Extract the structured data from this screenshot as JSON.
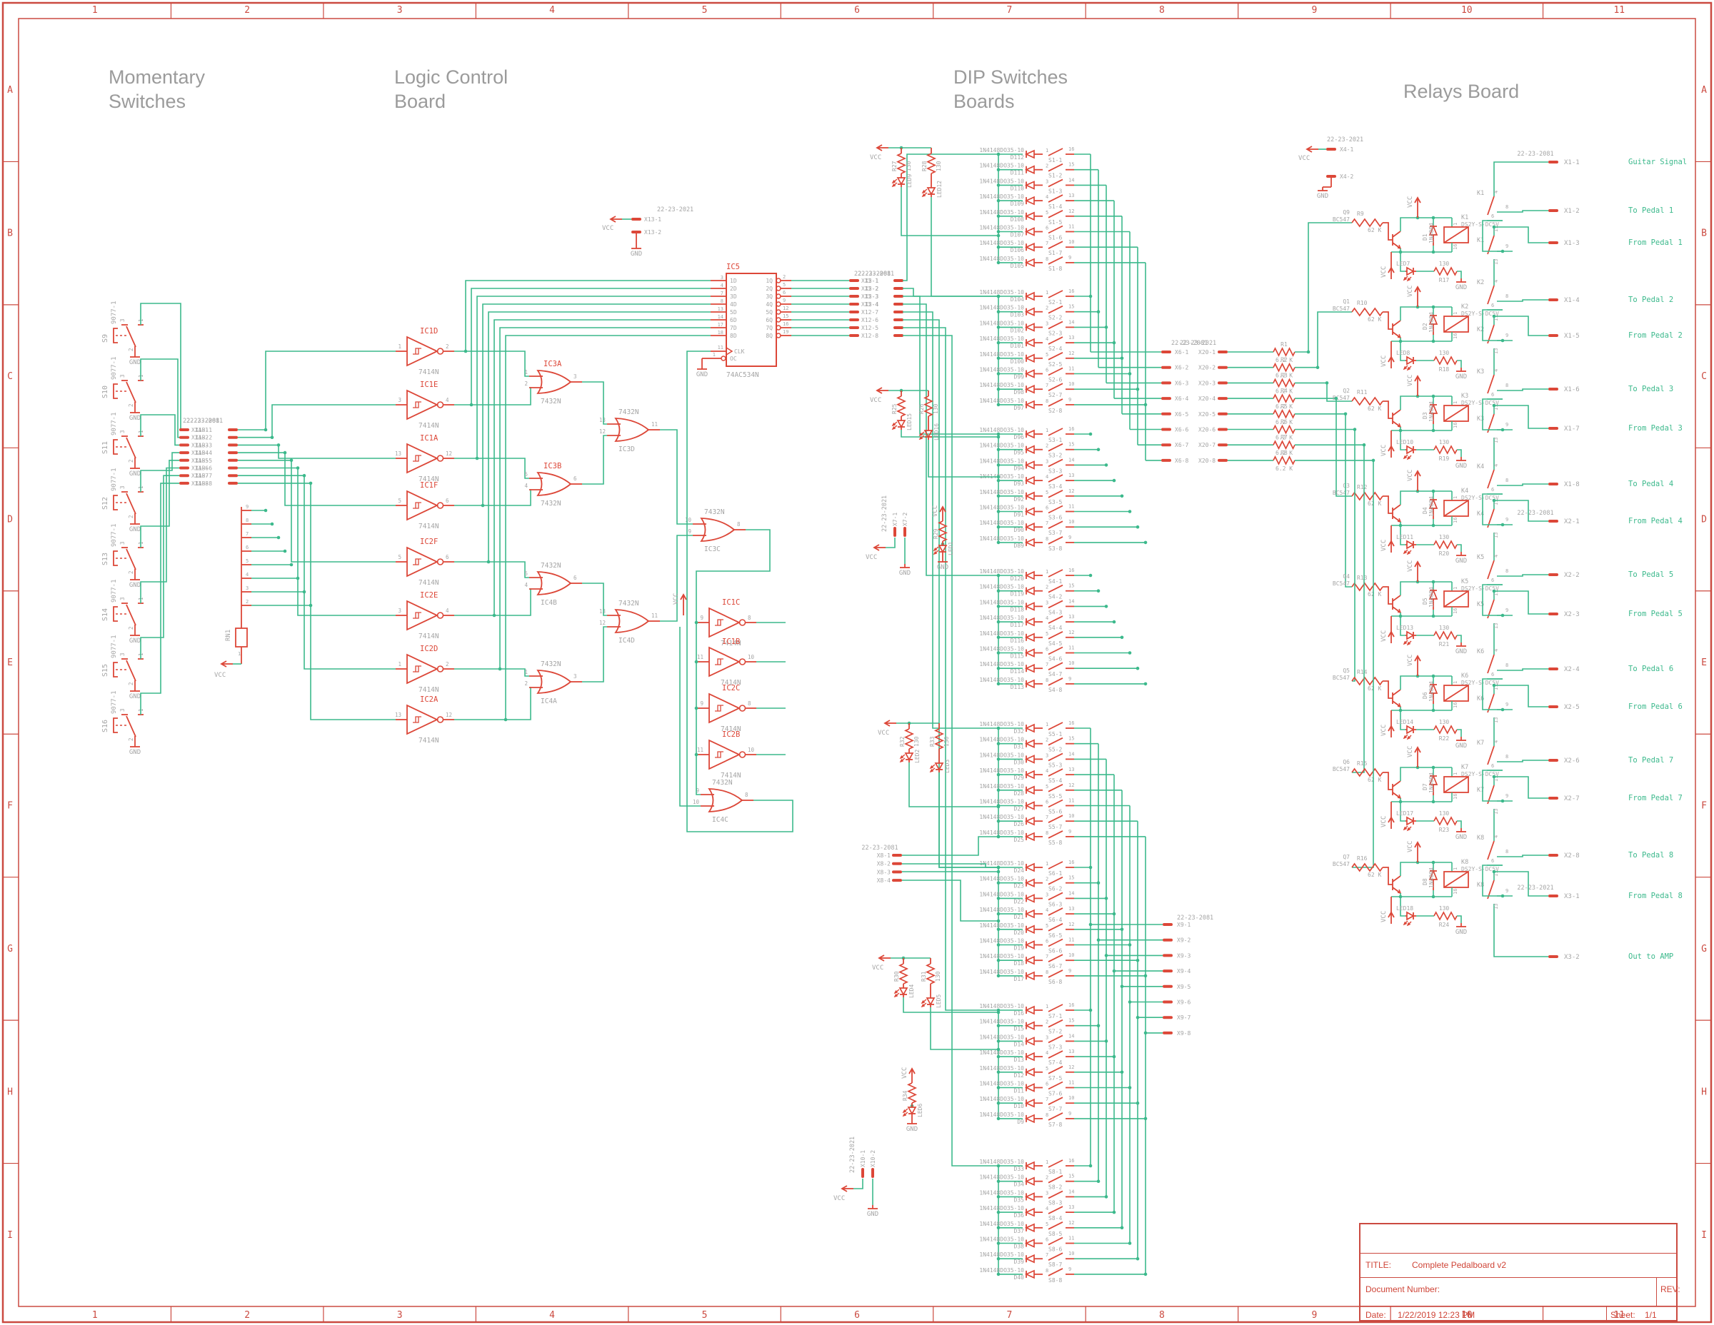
{
  "palette": {
    "red": "#dc4738",
    "green": "#3cb98c",
    "gray": "#a5a5a5",
    "frame": "#cb4a40",
    "title_red": "#cf4437"
  },
  "frame": {
    "cols": [
      "1",
      "2",
      "3",
      "4",
      "5",
      "6",
      "7",
      "8",
      "9",
      "10",
      "11"
    ],
    "rows": [
      "A",
      "B",
      "C",
      "D",
      "E",
      "F",
      "G",
      "H",
      "I"
    ]
  },
  "sections": {
    "momentary": "Momentary\nSwitches",
    "logic": "Logic Control\nBoard",
    "dip": "DIP Switches\nBoards",
    "relays": "Relays Board"
  },
  "title_block": {
    "title_label": "TITLE:",
    "title": "Complete Pedalboard v2",
    "doc_label": "Document Number:",
    "rev_label": "REV:",
    "date_label": "Date:",
    "date": "1/22/2019 12:23 PM",
    "sheet_label": "Sheet:",
    "sheet": "1/1"
  },
  "power": {
    "vcc": "VCC",
    "gnd": "GND"
  },
  "momentary": {
    "part": "9077-1",
    "pins": [
      "3",
      "1",
      "2"
    ],
    "switches": [
      "S9",
      "S10",
      "S11",
      "S12",
      "S13",
      "S14",
      "S15",
      "S16"
    ]
  },
  "conn_x1ab": {
    "header": "22-23-2081",
    "a": "X1A",
    "b": "X1B",
    "count": 8
  },
  "rn1": {
    "name": "RN1",
    "common_pin": "1",
    "pins": [
      "9",
      "8",
      "7",
      "6",
      "5",
      "4",
      "3",
      "2"
    ]
  },
  "inverters": {
    "part": "7414N",
    "left": [
      {
        "name": "IC1D",
        "in": "1",
        "out": "2"
      },
      {
        "name": "IC1E",
        "in": "3",
        "out": "4"
      },
      {
        "name": "IC1A",
        "in": "13",
        "out": "12"
      },
      {
        "name": "IC1F",
        "in": "5",
        "out": "6"
      },
      {
        "name": "IC2F",
        "in": "5",
        "out": "6"
      },
      {
        "name": "IC2E",
        "in": "3",
        "out": "4"
      },
      {
        "name": "IC2D",
        "in": "1",
        "out": "2"
      },
      {
        "name": "IC2A",
        "in": "13",
        "out": "12"
      }
    ],
    "right": [
      {
        "name": "IC1C",
        "in": "9",
        "out": "8"
      },
      {
        "name": "IC1B",
        "in": "11",
        "out": "10"
      },
      {
        "name": "IC2C",
        "in": "9",
        "out": "8"
      },
      {
        "name": "IC2B",
        "in": "11",
        "out": "10"
      }
    ]
  },
  "or_gates": {
    "part": "7432N",
    "tier1": [
      {
        "name": "IC3A",
        "a": "1",
        "b": "2",
        "y": "3"
      },
      {
        "name": "IC3B",
        "a": "5",
        "b": "4",
        "y": "6"
      },
      {
        "name": "IC4B",
        "a": "5",
        "b": "4",
        "y": "6"
      },
      {
        "name": "IC4A",
        "a": "1",
        "b": "2",
        "y": "3"
      }
    ],
    "tier2": [
      {
        "name": "IC3D",
        "a": "13",
        "b": "12",
        "y": "11"
      },
      {
        "name": "IC4D",
        "a": "13",
        "b": "12",
        "y": "11"
      }
    ],
    "tier3": {
      "name": "IC3C",
      "a": "10",
      "b": "9",
      "y": "8"
    },
    "tier4": {
      "name": "IC4C",
      "a": "9",
      "b": "10",
      "y": "8"
    }
  },
  "ic5": {
    "name": "IC5",
    "part": "74AC534N",
    "left_pins": [
      "3",
      "4",
      "7",
      "8",
      "13",
      "14",
      "17",
      "18"
    ],
    "left_labels": [
      "1D",
      "2D",
      "3D",
      "4D",
      "5D",
      "6D",
      "7D",
      "8D"
    ],
    "right_pins": [
      "2",
      "5",
      "6",
      "9",
      "12",
      "15",
      "16",
      "19"
    ],
    "right_labels": [
      "1Q",
      "2Q",
      "3Q",
      "4Q",
      "5Q",
      "6Q",
      "7Q",
      "8Q"
    ],
    "clk_pin": "11",
    "clk_label": "CLK",
    "oc_pin": "1",
    "oc_label": "OC"
  },
  "conn_x12": {
    "header": "22-23-2081",
    "rows": [
      [
        "X12-1",
        "X5-1"
      ],
      [
        "X12-2",
        "X5-2"
      ],
      [
        "X12-3",
        "X5-3"
      ],
      [
        "X12-4",
        "X5-4"
      ],
      [
        "X12-7"
      ],
      [
        "X12-6"
      ],
      [
        "X12-5"
      ],
      [
        "X12-8"
      ]
    ]
  },
  "conn_x13": {
    "header": "22-23-2021",
    "pins": [
      "X13-1",
      "X13-2"
    ]
  },
  "conn_x4": {
    "header": "22-23-2021",
    "pins": [
      "X4-1",
      "X4-2"
    ]
  },
  "conn_x7": {
    "header": "22-23-2021",
    "pins": [
      "X7-1",
      "X7-2"
    ]
  },
  "conn_x10": {
    "header": "22-23-2021",
    "pins": [
      "X10-1",
      "X10-2"
    ]
  },
  "conn_x8": {
    "header": "22-23-2081",
    "pins": [
      "X8-1",
      "X8-2",
      "X8-3",
      "X8-4"
    ]
  },
  "conn_x9": {
    "header": "22-23-2081",
    "pins": [
      "X9-1",
      "X9-2",
      "X9-3",
      "X9-4",
      "X9-5",
      "X9-6",
      "X9-7",
      "X9-8"
    ]
  },
  "conn_x6": {
    "pins": [
      "X6-1",
      "X6-2",
      "X6-3",
      "X6-4",
      "X6-5",
      "X6-6",
      "X6-7",
      "X6-8"
    ]
  },
  "conn_x20": {
    "header": "22-23-2081",
    "header2": "22-23-2021",
    "pins": [
      "X20-1",
      "X20-2",
      "X20-3",
      "X20-4",
      "X20-5",
      "X20-6",
      "X20-7",
      "X20-8"
    ]
  },
  "base_resistors": {
    "names": [
      "R1",
      "R2",
      "R3",
      "R4",
      "R5",
      "R6",
      "R7",
      "R8"
    ],
    "value": "6.2 K"
  },
  "dip": {
    "diode_part": "1N4148DO35-10",
    "left_pins": [
      "1",
      "2",
      "3",
      "4",
      "5",
      "6",
      "7",
      "8"
    ],
    "right_pins": [
      "16",
      "15",
      "14",
      "13",
      "12",
      "11",
      "10",
      "9"
    ],
    "groups": [
      {
        "name": "S1",
        "diodes": [
          "D112",
          "D111",
          "D110",
          "D109",
          "D108",
          "D107",
          "D106",
          "D105"
        ]
      },
      {
        "name": "S2",
        "diodes": [
          "D104",
          "D103",
          "D102",
          "D101",
          "D100",
          "D99",
          "D98",
          "D97"
        ]
      },
      {
        "name": "S3",
        "diodes": [
          "D96",
          "D95",
          "D94",
          "D93",
          "D92",
          "D91",
          "D90",
          "D89"
        ]
      },
      {
        "name": "S4",
        "diodes": [
          "D120",
          "D119",
          "D118",
          "D117",
          "D116",
          "D115",
          "D114",
          "D113"
        ]
      },
      {
        "name": "S5",
        "diodes": [
          "D32",
          "D31",
          "D30",
          "D29",
          "D28",
          "D27",
          "D26",
          "D25"
        ]
      },
      {
        "name": "S6",
        "diodes": [
          "D24",
          "D23",
          "D22",
          "D21",
          "D20",
          "D19",
          "D18",
          "D17"
        ]
      },
      {
        "name": "S7",
        "diodes": [
          "D16",
          "D15",
          "D14",
          "D13",
          "D12",
          "D11",
          "D10",
          "D9"
        ]
      },
      {
        "name": "S8",
        "diodes": [
          "D33",
          "D34",
          "D35",
          "D36",
          "D37",
          "D38",
          "D39",
          "D40"
        ]
      }
    ]
  },
  "indicator_clusters": [
    {
      "items": [
        {
          "r": "R27",
          "v": "130",
          "led": "LED9"
        },
        {
          "r": "R28",
          "v": "130",
          "led": "LED12"
        }
      ]
    },
    {
      "items": [
        {
          "r": "R25",
          "v": "",
          "led": "LED15"
        },
        {
          "r": "R26",
          "v": "130",
          "led": "LED16"
        }
      ]
    },
    {
      "items": [
        {
          "r": "R32",
          "v": "130",
          "led": "LED2"
        },
        {
          "r": "R33",
          "v": "130",
          "led": "LED3"
        }
      ]
    },
    {
      "items": [
        {
          "r": "R30",
          "v": "",
          "led": "LED4"
        },
        {
          "r": "R31",
          "v": "130",
          "led": "LED5"
        }
      ]
    }
  ],
  "indicator_singles": [
    {
      "r": "R29",
      "led": "LED1"
    },
    {
      "r": "R34",
      "led": "LED6"
    }
  ],
  "relays": {
    "relay_part": "DS2Y-S-DC5V",
    "transistor_part": "BC547",
    "flyback_part": "1N4004",
    "led_r_value": "130",
    "base_r_value": "62 K",
    "coil_pins": [
      "1",
      "16"
    ],
    "contact_pins": {
      "top": [
        "4",
        "8",
        "6"
      ],
      "bottom": [
        "11",
        "9",
        "13"
      ]
    },
    "channels": [
      {
        "q": "Q9",
        "rb": "R9",
        "k": "K1",
        "d": "D1",
        "led": "LED7",
        "rl": "R17"
      },
      {
        "q": "Q1",
        "rb": "R10",
        "k": "K2",
        "d": "D2",
        "led": "LED8",
        "rl": "R18"
      },
      {
        "q": "Q2",
        "rb": "R11",
        "k": "K3",
        "d": "D3",
        "led": "LED10",
        "rl": "R19"
      },
      {
        "q": "Q3",
        "rb": "R12",
        "k": "K4",
        "d": "D4",
        "led": "LED11",
        "rl": "R20"
      },
      {
        "q": "Q4",
        "rb": "R13",
        "k": "K5",
        "d": "D5",
        "led": "LED13",
        "rl": "R21"
      },
      {
        "q": "Q5",
        "rb": "R14",
        "k": "K6",
        "d": "D6",
        "led": "LED14",
        "rl": "R22"
      },
      {
        "q": "Q6",
        "rb": "R15",
        "k": "K7",
        "d": "D7",
        "led": "LED17",
        "rl": "R23"
      },
      {
        "q": "Q7",
        "rb": "R16",
        "k": "K8",
        "d": "D8",
        "led": "LED18",
        "rl": "R24"
      }
    ]
  },
  "outputs": {
    "x1_header": "22-23-2081",
    "x2_header": "22-23-2081",
    "x3_header": "22-23-2021",
    "pins": [
      {
        "pin": "X1-1",
        "label": "Guitar Signal"
      },
      {
        "pin": "X1-2",
        "label": "To Pedal 1"
      },
      {
        "pin": "X1-3",
        "label": "From Pedal 1"
      },
      {
        "pin": "X1-4",
        "label": "To Pedal 2"
      },
      {
        "pin": "X1-5",
        "label": "From Pedal 2"
      },
      {
        "pin": "X1-6",
        "label": "To Pedal 3"
      },
      {
        "pin": "X1-7",
        "label": "From Pedal 3"
      },
      {
        "pin": "X1-8",
        "label": "To Pedal 4"
      },
      {
        "pin": "X2-1",
        "label": "From Pedal 4"
      },
      {
        "pin": "X2-2",
        "label": "To Pedal 5"
      },
      {
        "pin": "X2-3",
        "label": "From Pedal 5"
      },
      {
        "pin": "X2-4",
        "label": "To Pedal 6"
      },
      {
        "pin": "X2-5",
        "label": "From Pedal 6"
      },
      {
        "pin": "X2-6",
        "label": "To Pedal 7"
      },
      {
        "pin": "X2-7",
        "label": "From Pedal 7"
      },
      {
        "pin": "X2-8",
        "label": "To Pedal 8"
      },
      {
        "pin": "X3-1",
        "label": "From Pedal 8"
      },
      {
        "pin": "X3-2",
        "label": "Out to AMP"
      }
    ]
  }
}
